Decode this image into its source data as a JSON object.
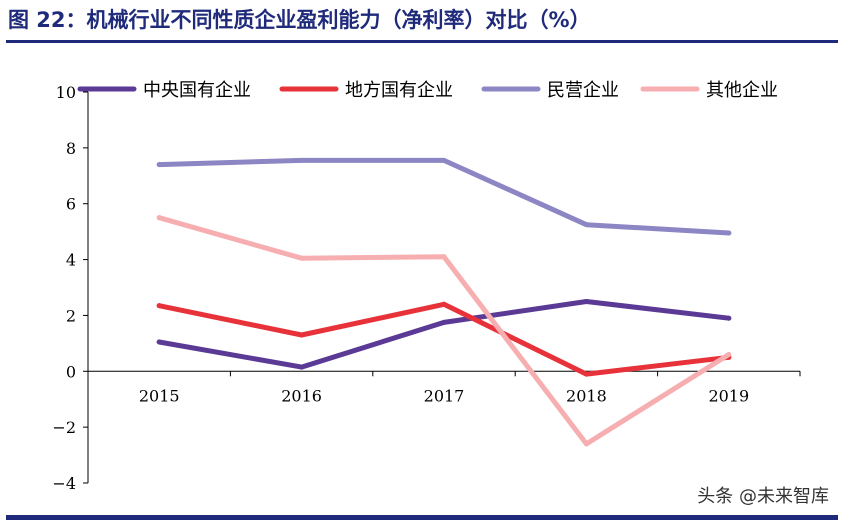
{
  "figure": {
    "title": "图 22：机械行业不同性质企业盈利能力（净利率）对比（%）",
    "watermark": "头条 @未来智库"
  },
  "chart_data": {
    "type": "line",
    "title": "图 22：机械行业不同性质企业盈利能力（净利率）对比（%）",
    "xlabel": "",
    "ylabel": "",
    "categories": [
      "2015",
      "2016",
      "2017",
      "2018",
      "2019"
    ],
    "ylim": [
      -4,
      10
    ],
    "yticks": [
      -4,
      -2,
      0,
      2,
      4,
      6,
      8,
      10
    ],
    "grid": false,
    "legend_position": "top",
    "series": [
      {
        "name": "中央国有企业",
        "color": "#5b3a96",
        "values": [
          1.05,
          0.15,
          1.75,
          2.5,
          1.9
        ]
      },
      {
        "name": "地方国有企业",
        "color": "#e8323a",
        "values": [
          2.35,
          1.3,
          2.4,
          -0.1,
          0.5
        ]
      },
      {
        "name": "民营企业",
        "color": "#8c86c4",
        "values": [
          7.4,
          7.55,
          7.55,
          5.25,
          4.95
        ]
      },
      {
        "name": "其他企业",
        "color": "#f7aeb0",
        "values": [
          5.5,
          4.05,
          4.1,
          -2.6,
          0.6
        ]
      }
    ]
  }
}
